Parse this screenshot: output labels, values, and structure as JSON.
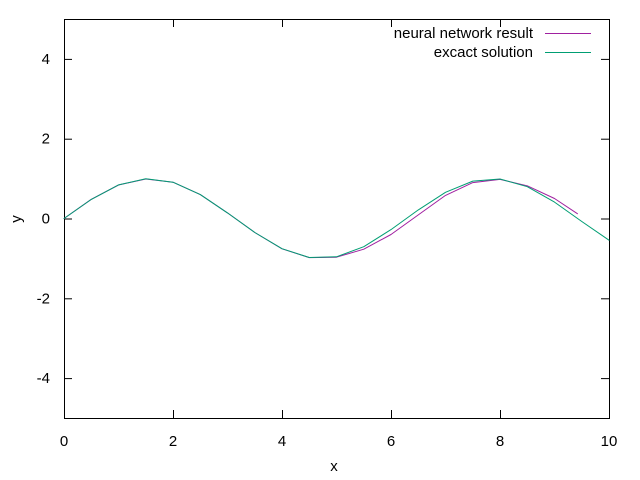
{
  "chart_data": {
    "type": "line",
    "title": "",
    "xlabel": "x",
    "ylabel": "y",
    "xlim": [
      0,
      10
    ],
    "ylim": [
      -5,
      5
    ],
    "xticks": [
      0,
      2,
      4,
      6,
      8,
      10
    ],
    "yticks": [
      -4,
      -2,
      0,
      2,
      4
    ],
    "grid": false,
    "legend_position": "top-right",
    "series": [
      {
        "name": "neural network result",
        "color": "#a020a0",
        "x": [
          0,
          0.5,
          1.0,
          1.5,
          2.0,
          2.5,
          3.0,
          3.5,
          4.0,
          4.5,
          5.0,
          5.5,
          6.0,
          6.5,
          7.0,
          7.5,
          8.0,
          8.5,
          9.0,
          9.42
        ],
        "y": [
          0.0,
          0.48,
          0.84,
          0.99,
          0.91,
          0.6,
          0.14,
          -0.35,
          -0.76,
          -0.98,
          -0.97,
          -0.77,
          -0.4,
          0.09,
          0.58,
          0.9,
          0.98,
          0.82,
          0.5,
          0.12
        ]
      },
      {
        "name": "excact solution",
        "color": "#009e73",
        "x": [
          0,
          0.5,
          1.0,
          1.5,
          2.0,
          2.5,
          3.0,
          3.5,
          4.0,
          4.5,
          5.0,
          5.5,
          6.0,
          6.5,
          7.0,
          7.5,
          8.0,
          8.5,
          9.0,
          9.5,
          10.0
        ],
        "y": [
          0.0,
          0.479,
          0.841,
          0.997,
          0.909,
          0.598,
          0.141,
          -0.351,
          -0.757,
          -0.978,
          -0.959,
          -0.706,
          -0.279,
          0.215,
          0.657,
          0.938,
          0.989,
          0.798,
          0.412,
          -0.075,
          -0.544
        ]
      }
    ]
  }
}
